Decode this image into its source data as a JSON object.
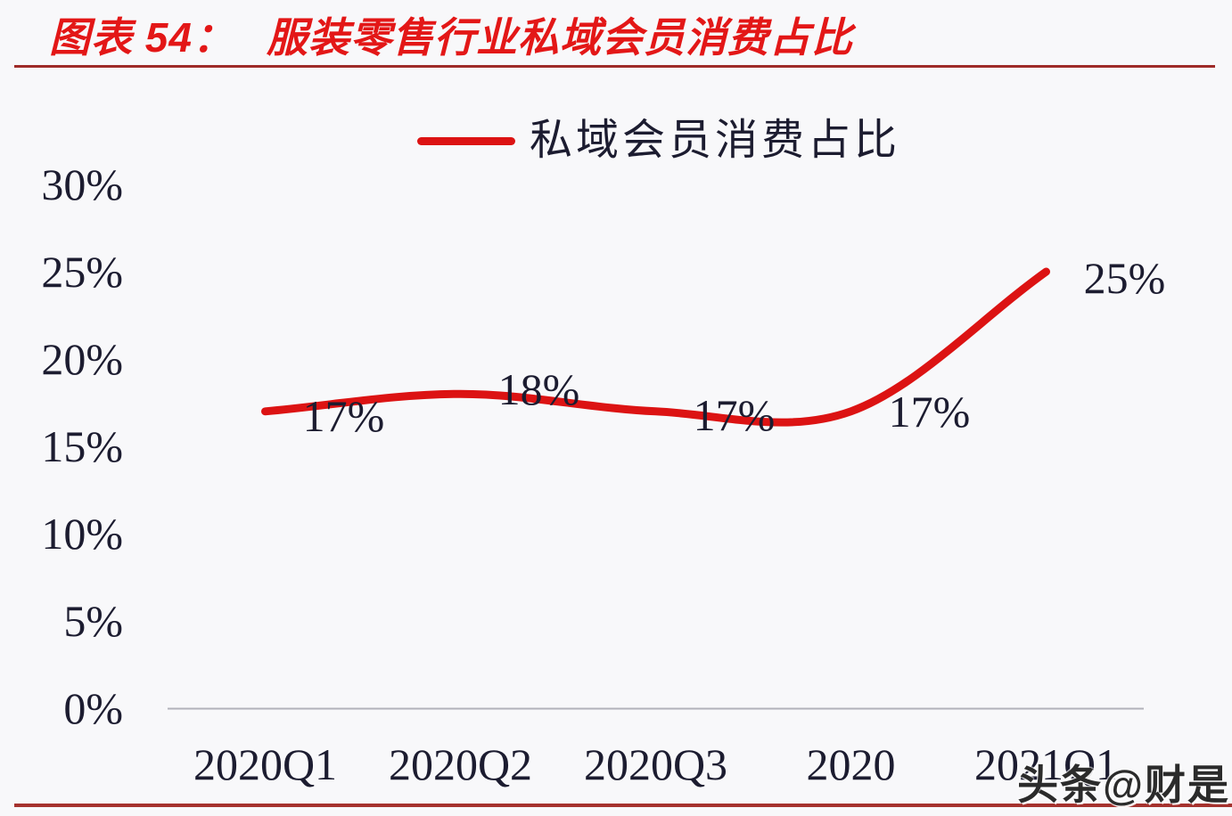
{
  "header": {
    "figure_label": "图表 54：",
    "title": "服装零售行业私域会员消费占比"
  },
  "legend": {
    "label": "私域会员消费占比"
  },
  "watermark": "头条@财是",
  "colors": {
    "title_red": "#e31717",
    "line_red": "#dc1313",
    "title_underline_red": "#9e2b28",
    "bottom_rule_red": "#a5322e",
    "text_dark": "#1c1c30",
    "axis_gray": "#b2b2ba",
    "background": "#f8f8fa"
  },
  "chart_data": {
    "type": "line",
    "title": "服装零售行业私域会员消费占比",
    "xlabel": "",
    "ylabel": "",
    "categories": [
      "2020Q1",
      "2020Q2",
      "2020Q3",
      "2020",
      "2021Q1"
    ],
    "series": [
      {
        "name": "私域会员消费占比",
        "values": [
          17,
          18,
          17,
          17,
          25
        ]
      }
    ],
    "data_labels": [
      "17%",
      "18%",
      "17%",
      "17%",
      "25%"
    ],
    "yticks": [
      {
        "value": 30,
        "label": "30%"
      },
      {
        "value": 25,
        "label": "25%"
      },
      {
        "value": 20,
        "label": "20%"
      },
      {
        "value": 15,
        "label": "15%"
      },
      {
        "value": 10,
        "label": "10%"
      },
      {
        "value": 5,
        "label": "5%"
      },
      {
        "value": 0,
        "label": "0%"
      }
    ],
    "ylim": [
      0,
      30
    ],
    "grid": false,
    "legend_position": "top-center",
    "line_color": "#dc1313",
    "smooth": true
  }
}
